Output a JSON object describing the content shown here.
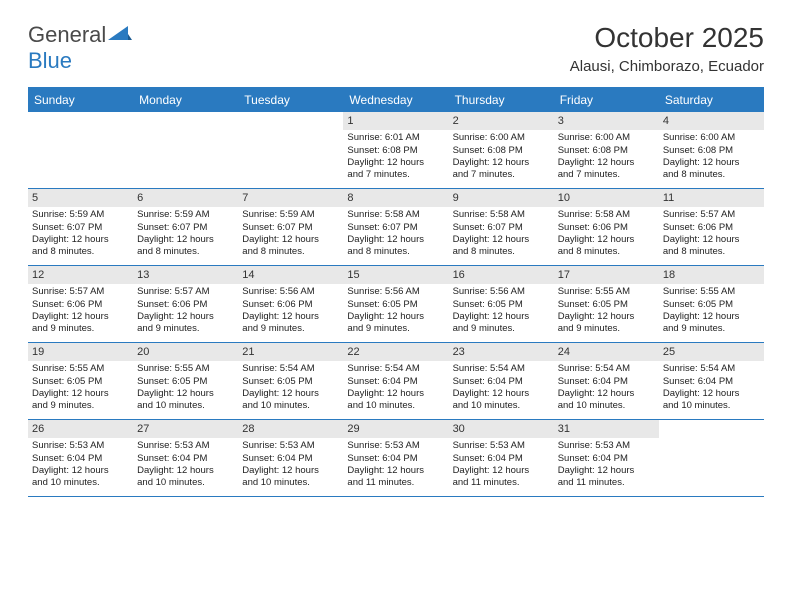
{
  "logo": {
    "text1": "General",
    "text2": "Blue"
  },
  "title": "October 2025",
  "subtitle": "Alausi, Chimborazo, Ecuador",
  "header_bg": "#2a7ac0",
  "header_text": "#ffffff",
  "daynum_bg": "#e8e8e8",
  "border_color": "#2a7ac0",
  "day_names": [
    "Sunday",
    "Monday",
    "Tuesday",
    "Wednesday",
    "Thursday",
    "Friday",
    "Saturday"
  ],
  "weeks": [
    [
      {
        "n": "",
        "empty": true
      },
      {
        "n": "",
        "empty": true
      },
      {
        "n": "",
        "empty": true
      },
      {
        "n": "1",
        "sr": "Sunrise: 6:01 AM",
        "ss": "Sunset: 6:08 PM",
        "d1": "Daylight: 12 hours",
        "d2": "and 7 minutes."
      },
      {
        "n": "2",
        "sr": "Sunrise: 6:00 AM",
        "ss": "Sunset: 6:08 PM",
        "d1": "Daylight: 12 hours",
        "d2": "and 7 minutes."
      },
      {
        "n": "3",
        "sr": "Sunrise: 6:00 AM",
        "ss": "Sunset: 6:08 PM",
        "d1": "Daylight: 12 hours",
        "d2": "and 7 minutes."
      },
      {
        "n": "4",
        "sr": "Sunrise: 6:00 AM",
        "ss": "Sunset: 6:08 PM",
        "d1": "Daylight: 12 hours",
        "d2": "and 8 minutes."
      }
    ],
    [
      {
        "n": "5",
        "sr": "Sunrise: 5:59 AM",
        "ss": "Sunset: 6:07 PM",
        "d1": "Daylight: 12 hours",
        "d2": "and 8 minutes."
      },
      {
        "n": "6",
        "sr": "Sunrise: 5:59 AM",
        "ss": "Sunset: 6:07 PM",
        "d1": "Daylight: 12 hours",
        "d2": "and 8 minutes."
      },
      {
        "n": "7",
        "sr": "Sunrise: 5:59 AM",
        "ss": "Sunset: 6:07 PM",
        "d1": "Daylight: 12 hours",
        "d2": "and 8 minutes."
      },
      {
        "n": "8",
        "sr": "Sunrise: 5:58 AM",
        "ss": "Sunset: 6:07 PM",
        "d1": "Daylight: 12 hours",
        "d2": "and 8 minutes."
      },
      {
        "n": "9",
        "sr": "Sunrise: 5:58 AM",
        "ss": "Sunset: 6:07 PM",
        "d1": "Daylight: 12 hours",
        "d2": "and 8 minutes."
      },
      {
        "n": "10",
        "sr": "Sunrise: 5:58 AM",
        "ss": "Sunset: 6:06 PM",
        "d1": "Daylight: 12 hours",
        "d2": "and 8 minutes."
      },
      {
        "n": "11",
        "sr": "Sunrise: 5:57 AM",
        "ss": "Sunset: 6:06 PM",
        "d1": "Daylight: 12 hours",
        "d2": "and 8 minutes."
      }
    ],
    [
      {
        "n": "12",
        "sr": "Sunrise: 5:57 AM",
        "ss": "Sunset: 6:06 PM",
        "d1": "Daylight: 12 hours",
        "d2": "and 9 minutes."
      },
      {
        "n": "13",
        "sr": "Sunrise: 5:57 AM",
        "ss": "Sunset: 6:06 PM",
        "d1": "Daylight: 12 hours",
        "d2": "and 9 minutes."
      },
      {
        "n": "14",
        "sr": "Sunrise: 5:56 AM",
        "ss": "Sunset: 6:06 PM",
        "d1": "Daylight: 12 hours",
        "d2": "and 9 minutes."
      },
      {
        "n": "15",
        "sr": "Sunrise: 5:56 AM",
        "ss": "Sunset: 6:05 PM",
        "d1": "Daylight: 12 hours",
        "d2": "and 9 minutes."
      },
      {
        "n": "16",
        "sr": "Sunrise: 5:56 AM",
        "ss": "Sunset: 6:05 PM",
        "d1": "Daylight: 12 hours",
        "d2": "and 9 minutes."
      },
      {
        "n": "17",
        "sr": "Sunrise: 5:55 AM",
        "ss": "Sunset: 6:05 PM",
        "d1": "Daylight: 12 hours",
        "d2": "and 9 minutes."
      },
      {
        "n": "18",
        "sr": "Sunrise: 5:55 AM",
        "ss": "Sunset: 6:05 PM",
        "d1": "Daylight: 12 hours",
        "d2": "and 9 minutes."
      }
    ],
    [
      {
        "n": "19",
        "sr": "Sunrise: 5:55 AM",
        "ss": "Sunset: 6:05 PM",
        "d1": "Daylight: 12 hours",
        "d2": "and 9 minutes."
      },
      {
        "n": "20",
        "sr": "Sunrise: 5:55 AM",
        "ss": "Sunset: 6:05 PM",
        "d1": "Daylight: 12 hours",
        "d2": "and 10 minutes."
      },
      {
        "n": "21",
        "sr": "Sunrise: 5:54 AM",
        "ss": "Sunset: 6:05 PM",
        "d1": "Daylight: 12 hours",
        "d2": "and 10 minutes."
      },
      {
        "n": "22",
        "sr": "Sunrise: 5:54 AM",
        "ss": "Sunset: 6:04 PM",
        "d1": "Daylight: 12 hours",
        "d2": "and 10 minutes."
      },
      {
        "n": "23",
        "sr": "Sunrise: 5:54 AM",
        "ss": "Sunset: 6:04 PM",
        "d1": "Daylight: 12 hours",
        "d2": "and 10 minutes."
      },
      {
        "n": "24",
        "sr": "Sunrise: 5:54 AM",
        "ss": "Sunset: 6:04 PM",
        "d1": "Daylight: 12 hours",
        "d2": "and 10 minutes."
      },
      {
        "n": "25",
        "sr": "Sunrise: 5:54 AM",
        "ss": "Sunset: 6:04 PM",
        "d1": "Daylight: 12 hours",
        "d2": "and 10 minutes."
      }
    ],
    [
      {
        "n": "26",
        "sr": "Sunrise: 5:53 AM",
        "ss": "Sunset: 6:04 PM",
        "d1": "Daylight: 12 hours",
        "d2": "and 10 minutes."
      },
      {
        "n": "27",
        "sr": "Sunrise: 5:53 AM",
        "ss": "Sunset: 6:04 PM",
        "d1": "Daylight: 12 hours",
        "d2": "and 10 minutes."
      },
      {
        "n": "28",
        "sr": "Sunrise: 5:53 AM",
        "ss": "Sunset: 6:04 PM",
        "d1": "Daylight: 12 hours",
        "d2": "and 10 minutes."
      },
      {
        "n": "29",
        "sr": "Sunrise: 5:53 AM",
        "ss": "Sunset: 6:04 PM",
        "d1": "Daylight: 12 hours",
        "d2": "and 11 minutes."
      },
      {
        "n": "30",
        "sr": "Sunrise: 5:53 AM",
        "ss": "Sunset: 6:04 PM",
        "d1": "Daylight: 12 hours",
        "d2": "and 11 minutes."
      },
      {
        "n": "31",
        "sr": "Sunrise: 5:53 AM",
        "ss": "Sunset: 6:04 PM",
        "d1": "Daylight: 12 hours",
        "d2": "and 11 minutes."
      },
      {
        "n": "",
        "empty": true
      }
    ]
  ]
}
